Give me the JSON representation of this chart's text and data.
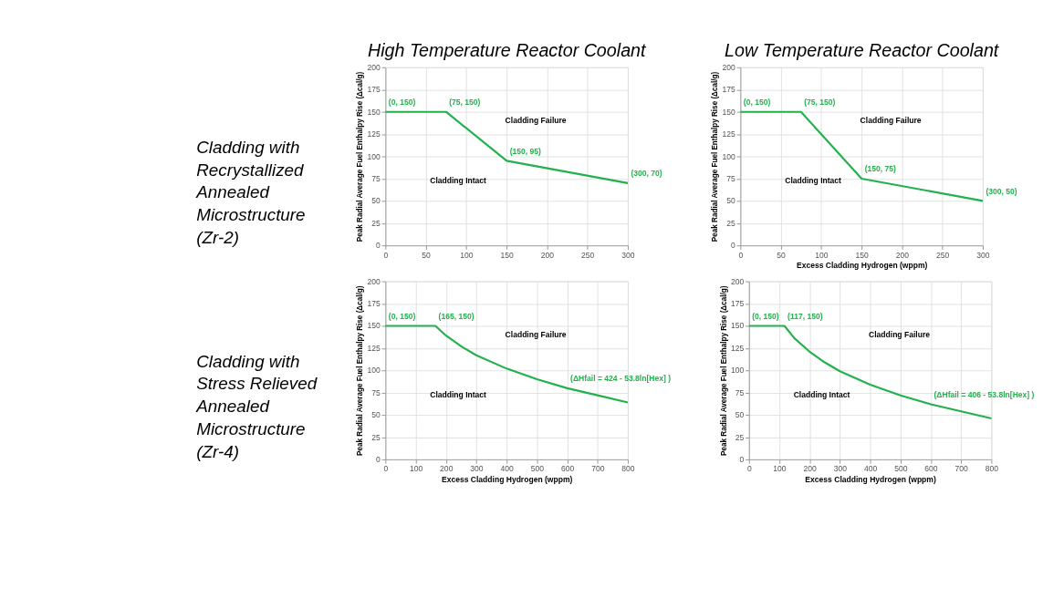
{
  "chart_data": [
    {
      "type": "line",
      "title": "High Temperature Reactor Coolant",
      "ylabel": "Peak Radial Average Fuel Enthalpy Rise (Δcal/g)",
      "x": [
        0,
        75,
        150,
        300
      ],
      "series": [
        {
          "color": "#22b14c",
          "values": [
            150,
            150,
            95,
            70
          ]
        }
      ],
      "xlim": [
        0,
        300
      ],
      "xticks": [
        0,
        50,
        100,
        150,
        200,
        250,
        300
      ],
      "ylim": [
        0,
        200
      ],
      "yticks": [
        0,
        25,
        50,
        75,
        100,
        125,
        150,
        175,
        200
      ],
      "grid": true,
      "line_style": "solid",
      "annotations": [
        "Cladding Failure",
        "Cladding Intact",
        "Cladding with Recrystallized Annealed Microstructure (Zr-2)",
        {
          "text": "(0, 150)",
          "x": 0,
          "y": 150
        },
        {
          "text": "(75, 150)",
          "x": 75,
          "y": 150
        },
        {
          "text": "(150, 95)",
          "x": 150,
          "y": 95
        },
        {
          "text": "(300, 70)",
          "x": 300,
          "y": 70
        }
      ]
    },
    {
      "type": "line",
      "title": "Low Temperature Reactor Coolant",
      "xlabel": "Excess Cladding Hydrogen (wppm)",
      "ylabel": "Peak Radial Average Fuel Enthalpy Rise (Δcal/g)",
      "x": [
        0,
        75,
        150,
        300
      ],
      "series": [
        {
          "color": "#22b14c",
          "values": [
            150,
            150,
            75,
            50
          ]
        }
      ],
      "xlim": [
        0,
        300
      ],
      "xticks": [
        0,
        50,
        100,
        150,
        200,
        250,
        300
      ],
      "ylim": [
        0,
        200
      ],
      "yticks": [
        0,
        25,
        50,
        75,
        100,
        125,
        150,
        175,
        200
      ],
      "grid": true,
      "line_style": "solid",
      "annotations": [
        "Cladding Failure",
        "Cladding Intact",
        {
          "text": "(0, 150)",
          "x": 0,
          "y": 150
        },
        {
          "text": "(75, 150)",
          "x": 75,
          "y": 150
        },
        {
          "text": "(150, 75)",
          "x": 150,
          "y": 75
        },
        {
          "text": "(300, 50)",
          "x": 300,
          "y": 50
        }
      ]
    },
    {
      "type": "line",
      "xlabel": "Excess Cladding Hydrogen (wppm)",
      "ylabel": "Peak Radial Average Fuel Enthalpy Rise (Δcal/g)",
      "x": [
        0,
        165,
        200,
        250,
        300,
        400,
        500,
        600,
        700,
        800
      ],
      "series": [
        {
          "color": "#22b14c",
          "values": [
            150,
            150,
            139,
            127,
            117,
            102,
            90,
            80,
            72,
            64
          ]
        }
      ],
      "xlim": [
        0,
        800
      ],
      "xticks": [
        0,
        100,
        200,
        300,
        400,
        500,
        600,
        700,
        800
      ],
      "ylim": [
        0,
        200
      ],
      "yticks": [
        0,
        25,
        50,
        75,
        100,
        125,
        150,
        175,
        200
      ],
      "grid": true,
      "line_style": "solid",
      "annotations": [
        "Cladding Failure",
        "Cladding Intact",
        "Cladding with Stress Relieved Annealed Microstructure (Zr-4)",
        {
          "text": "(0, 150)",
          "x": 0,
          "y": 150
        },
        {
          "text": "(165, 150)",
          "x": 165,
          "y": 150
        },
        {
          "text": "(ΔHfail = 424 - 53.8ln[Hex] )",
          "x": 600,
          "y": 80
        }
      ]
    },
    {
      "type": "line",
      "xlabel": "Excess Cladding Hydrogen (wppm)",
      "ylabel": "Peak Radial Average Fuel Enthalpy Rise (Δcal/g)",
      "x": [
        0,
        117,
        150,
        200,
        250,
        300,
        400,
        500,
        600,
        700,
        800
      ],
      "series": [
        {
          "color": "#22b14c",
          "values": [
            150,
            150,
            136,
            121,
            109,
            99,
            84,
            72,
            62,
            54,
            46
          ]
        }
      ],
      "xlim": [
        0,
        800
      ],
      "xticks": [
        0,
        100,
        200,
        300,
        400,
        500,
        600,
        700,
        800
      ],
      "ylim": [
        0,
        200
      ],
      "yticks": [
        0,
        25,
        50,
        75,
        100,
        125,
        150,
        175,
        200
      ],
      "grid": true,
      "line_style": "solid",
      "annotations": [
        "Cladding Failure",
        "Cladding Intact",
        {
          "text": "(0, 150)",
          "x": 0,
          "y": 150
        },
        {
          "text": "(117, 150)",
          "x": 117,
          "y": 150
        },
        {
          "text": "(ΔHfail = 406 - 53.8ln[Hex] )",
          "x": 600,
          "y": 62
        }
      ]
    }
  ]
}
